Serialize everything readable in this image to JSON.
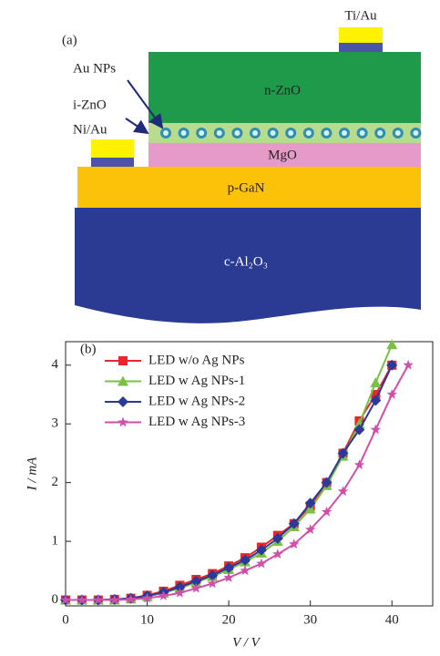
{
  "diagram": {
    "panel_label": "(a)",
    "labels": {
      "ti_au": "Ti/Au",
      "au_nps": "Au NPs",
      "i_zno": "i-ZnO",
      "ni_au": "Ni/Au",
      "n_zno": "n-ZnO",
      "mgo": "MgO",
      "p_gan": "p-GaN",
      "sapphire": "c-Al₂O₃"
    }
  },
  "chart_data": {
    "type": "line",
    "annotation": "(b)",
    "x_label": "V / V",
    "y_label": "I / mA",
    "x": [
      0,
      2,
      4,
      6,
      8,
      10,
      12,
      14,
      16,
      18,
      20,
      22,
      24,
      26,
      28,
      30,
      32,
      34,
      36,
      38,
      40,
      42
    ],
    "series": [
      {
        "name": "LED w/o Ag NPs",
        "color": "#e8262b",
        "marker": "square",
        "values": [
          0,
          0,
          0,
          0.01,
          0.03,
          0.08,
          0.15,
          0.25,
          0.35,
          0.45,
          0.58,
          0.72,
          0.9,
          1.1,
          1.3,
          1.6,
          2.0,
          2.5,
          3.05,
          3.5,
          4.0,
          null
        ]
      },
      {
        "name": "LED w Ag NPs-1",
        "color": "#7ac143",
        "marker": "triangle",
        "values": [
          0,
          0,
          0,
          0,
          0.02,
          0.06,
          0.12,
          0.2,
          0.3,
          0.4,
          0.52,
          0.65,
          0.8,
          1.0,
          1.25,
          1.55,
          1.95,
          2.45,
          3.0,
          3.7,
          4.35,
          null
        ]
      },
      {
        "name": "LED w Ag NPs-2",
        "color": "#2b3a9a",
        "marker": "diamond",
        "values": [
          0,
          0,
          0,
          0.01,
          0.03,
          0.07,
          0.13,
          0.22,
          0.32,
          0.42,
          0.55,
          0.68,
          0.85,
          1.05,
          1.3,
          1.65,
          2.0,
          2.5,
          2.9,
          3.4,
          4.0,
          null
        ]
      },
      {
        "name": "LED w Ag NPs-3",
        "color": "#d04fa8",
        "marker": "star",
        "values": [
          0,
          0,
          0,
          0,
          0.01,
          0.03,
          0.07,
          0.12,
          0.2,
          0.28,
          0.38,
          0.5,
          0.62,
          0.78,
          0.95,
          1.2,
          1.5,
          1.85,
          2.3,
          2.9,
          3.5,
          4.0
        ]
      }
    ],
    "xlim": [
      0,
      45
    ],
    "ylim": [
      -0.1,
      4.4
    ],
    "xticks": [
      0,
      10,
      20,
      30,
      40
    ],
    "yticks": [
      0,
      1,
      2,
      3,
      4
    ],
    "legend": "upper-left"
  }
}
